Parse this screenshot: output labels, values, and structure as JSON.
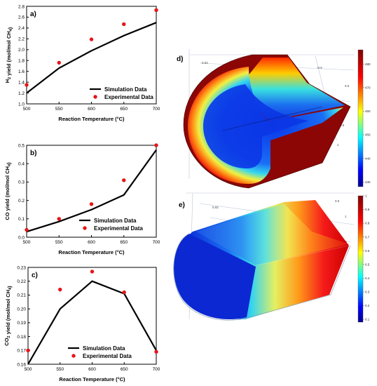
{
  "chart_data": [
    {
      "type": "line",
      "panel_label": "a)",
      "x": [
        500,
        550,
        600,
        650,
        700
      ],
      "xlim": [
        500,
        700
      ],
      "xticks": [
        "500",
        "550",
        "600",
        "650",
        "700"
      ],
      "ylim": [
        1.0,
        2.8
      ],
      "yticks": [
        "1.0",
        "1.2",
        "1.4",
        "1.6",
        "1.8",
        "2.0",
        "2.2",
        "2.4",
        "2.6",
        "2.8"
      ],
      "xlabel": "Reaction Temperature (°C)",
      "ylabel": "H2 yield (mol/mol CH4)",
      "legend": "bottom-right",
      "series": [
        {
          "name": "Simulation Data",
          "style": "line",
          "color": "#000000",
          "values": [
            1.2,
            1.66,
            1.98,
            2.26,
            2.5
          ]
        },
        {
          "name": "Experimental Data",
          "style": "markers",
          "color": "#e8141a",
          "values": [
            1.35,
            1.76,
            2.19,
            2.47,
            2.73
          ]
        }
      ]
    },
    {
      "type": "line",
      "panel_label": "b)",
      "x": [
        500,
        550,
        600,
        650,
        700
      ],
      "xlim": [
        500,
        700
      ],
      "xticks": [
        "500",
        "550",
        "600",
        "650",
        "700"
      ],
      "ylim": [
        0.0,
        0.5
      ],
      "yticks": [
        "0.0",
        "0.1",
        "0.2",
        "0.3",
        "0.4",
        "0.5"
      ],
      "xlabel": "Reaction Temperature (°C)",
      "ylabel": "CO yield (mol/mol CH4)",
      "legend": "bottom-right",
      "series": [
        {
          "name": "Simulation Data",
          "style": "line",
          "color": "#000000",
          "values": [
            0.03,
            0.085,
            0.15,
            0.23,
            0.475
          ]
        },
        {
          "name": "Experimental Data",
          "style": "markers",
          "color": "#e8141a",
          "values": [
            0.04,
            0.1,
            0.18,
            0.31,
            0.5
          ]
        }
      ]
    },
    {
      "type": "line",
      "panel_label": "c)",
      "x": [
        500,
        550,
        600,
        650,
        700
      ],
      "xlim": [
        500,
        700
      ],
      "xticks": [
        "500",
        "550",
        "600",
        "650",
        "700"
      ],
      "ylim": [
        0.16,
        0.23
      ],
      "yticks": [
        "0.16",
        "0.17",
        "0.18",
        "0.19",
        "0.20",
        "0.21",
        "0.22",
        "0.23"
      ],
      "xlabel": "Reaction Temperature (°C)",
      "ylabel": "CO2 yield (mol/mol CH4)",
      "legend": "bottom-center",
      "series": [
        {
          "name": "Simulation Data",
          "style": "line",
          "color": "#000000",
          "values": [
            0.16,
            0.2,
            0.22,
            0.211,
            0.17
          ]
        },
        {
          "name": "Experimental Data",
          "style": "markers",
          "color": "#e8141a",
          "values": [
            0.17,
            0.214,
            0.227,
            0.212,
            0.169
          ]
        }
      ]
    }
  ],
  "panel_d": {
    "label": "d)",
    "colorbar_ticks": [
      "480",
      "470",
      "460",
      "450",
      "440",
      "430"
    ],
    "colorbar_range": [
      428,
      486
    ],
    "axis_ticks": [
      "0.02",
      "0",
      "-0.5",
      "0.5",
      "1",
      "0.5",
      "0"
    ]
  },
  "panel_e": {
    "label": "e)",
    "colorbar_ticks": [
      "1",
      "0.9",
      "0.8",
      "0.7",
      "0.6",
      "0.5",
      "0.4",
      "0.3",
      "0.2",
      "0.1"
    ],
    "colorbar_range": [
      0.08,
      1.0
    ],
    "axis_ticks": [
      "0.02",
      "0",
      "0.5",
      "1",
      "0"
    ]
  }
}
